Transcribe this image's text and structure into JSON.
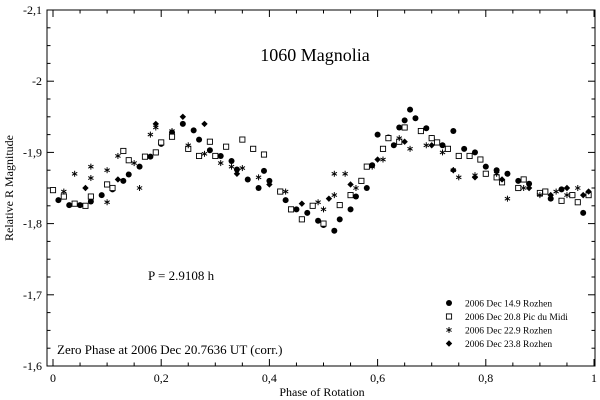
{
  "chart_data": {
    "type": "scatter",
    "title": "1060 Magnolia",
    "xlabel": "Phase of Rotation",
    "ylabel": "Relative R Magnitude",
    "xlim": [
      0,
      1
    ],
    "ylim": [
      -1.6,
      -2.1
    ],
    "x_ticks": [
      0,
      0.2,
      0.4,
      0.6,
      0.8,
      1
    ],
    "x_tick_labels": [
      "0",
      "0,2",
      "0,4",
      "0,6",
      "0,8",
      "1"
    ],
    "y_ticks": [
      -1.6,
      -1.7,
      -1.8,
      -1.9,
      -2.0,
      -2.1
    ],
    "y_tick_labels": [
      "-1,6",
      "-1,7",
      "-1,8",
      "-1,9",
      "-2",
      "-2,1"
    ],
    "annotations": {
      "period": "P = 2.9108 h",
      "zero_phase": "Zero Phase at 2006 Dec 20.7636 UT (corr.)"
    },
    "legend_position": "bottom-right",
    "series": [
      {
        "name": "2006 Dec 14.9 Rozhen",
        "marker": "filled-circle",
        "points": [
          [
            0.01,
            -1.833
          ],
          [
            0.03,
            -1.826
          ],
          [
            0.05,
            -1.826
          ],
          [
            0.07,
            -1.831
          ],
          [
            0.09,
            -1.84
          ],
          [
            0.11,
            -1.848
          ],
          [
            0.13,
            -1.86
          ],
          [
            0.14,
            -1.869
          ],
          [
            0.16,
            -1.88
          ],
          [
            0.18,
            -1.894
          ],
          [
            0.2,
            -1.912
          ],
          [
            0.22,
            -1.928
          ],
          [
            0.24,
            -1.94
          ],
          [
            0.26,
            -1.931
          ],
          [
            0.27,
            -1.918
          ],
          [
            0.29,
            -1.903
          ],
          [
            0.31,
            -1.895
          ],
          [
            0.33,
            -1.888
          ],
          [
            0.34,
            -1.876
          ],
          [
            0.36,
            -1.862
          ],
          [
            0.38,
            -1.85
          ],
          [
            0.39,
            -1.874
          ],
          [
            0.4,
            -1.86
          ],
          [
            0.42,
            -1.845
          ],
          [
            0.43,
            -1.833
          ],
          [
            0.45,
            -1.82
          ],
          [
            0.47,
            -1.815
          ],
          [
            0.49,
            -1.804
          ],
          [
            0.5,
            -1.798
          ],
          [
            0.52,
            -1.79
          ],
          [
            0.53,
            -1.806
          ],
          [
            0.55,
            -1.82
          ],
          [
            0.56,
            -1.838
          ],
          [
            0.58,
            -1.85
          ],
          [
            0.59,
            -1.882
          ],
          [
            0.6,
            -1.925
          ],
          [
            0.62,
            -1.921
          ],
          [
            0.63,
            -1.91
          ],
          [
            0.64,
            -1.935
          ],
          [
            0.65,
            -1.945
          ],
          [
            0.66,
            -1.96
          ],
          [
            0.67,
            -1.948
          ],
          [
            0.69,
            -1.934
          ],
          [
            0.7,
            -1.92
          ],
          [
            0.72,
            -1.91
          ],
          [
            0.74,
            -1.93
          ],
          [
            0.76,
            -1.905
          ],
          [
            0.78,
            -1.9
          ],
          [
            0.8,
            -1.88
          ],
          [
            0.82,
            -1.875
          ],
          [
            0.84,
            -1.87
          ],
          [
            0.86,
            -1.86
          ],
          [
            0.88,
            -1.856
          ],
          [
            0.9,
            -1.842
          ],
          [
            0.92,
            -1.835
          ],
          [
            0.94,
            -1.848
          ],
          [
            0.96,
            -1.84
          ],
          [
            0.98,
            -1.815
          ]
        ]
      },
      {
        "name": "2006 Dec 20.8 Pic du Midi",
        "marker": "open-square",
        "points": [
          [
            0.0,
            -1.847
          ],
          [
            0.02,
            -1.838
          ],
          [
            0.04,
            -1.828
          ],
          [
            0.06,
            -1.825
          ],
          [
            0.07,
            -1.838
          ],
          [
            0.1,
            -1.855
          ],
          [
            0.11,
            -1.85
          ],
          [
            0.13,
            -1.902
          ],
          [
            0.14,
            -1.889
          ],
          [
            0.17,
            -1.894
          ],
          [
            0.19,
            -1.9
          ],
          [
            0.2,
            -1.914
          ],
          [
            0.22,
            -1.922
          ],
          [
            0.25,
            -1.905
          ],
          [
            0.27,
            -1.895
          ],
          [
            0.29,
            -1.915
          ],
          [
            0.3,
            -1.895
          ],
          [
            0.32,
            -1.908
          ],
          [
            0.35,
            -1.918
          ],
          [
            0.37,
            -1.905
          ],
          [
            0.39,
            -1.897
          ],
          [
            0.42,
            -1.845
          ],
          [
            0.44,
            -1.82
          ],
          [
            0.46,
            -1.806
          ],
          [
            0.48,
            -1.825
          ],
          [
            0.5,
            -1.8
          ],
          [
            0.53,
            -1.826
          ],
          [
            0.55,
            -1.84
          ],
          [
            0.57,
            -1.86
          ],
          [
            0.58,
            -1.88
          ],
          [
            0.61,
            -1.905
          ],
          [
            0.62,
            -1.92
          ],
          [
            0.64,
            -1.915
          ],
          [
            0.65,
            -1.935
          ],
          [
            0.68,
            -1.93
          ],
          [
            0.7,
            -1.92
          ],
          [
            0.71,
            -1.914
          ],
          [
            0.73,
            -1.905
          ],
          [
            0.75,
            -1.895
          ],
          [
            0.77,
            -1.895
          ],
          [
            0.79,
            -1.89
          ],
          [
            0.8,
            -1.87
          ],
          [
            0.82,
            -1.865
          ],
          [
            0.83,
            -1.858
          ],
          [
            0.86,
            -1.85
          ],
          [
            0.87,
            -1.862
          ],
          [
            0.9,
            -1.843
          ],
          [
            0.91,
            -1.845
          ],
          [
            0.94,
            -1.832
          ],
          [
            0.96,
            -1.84
          ],
          [
            0.97,
            -1.83
          ],
          [
            0.99,
            -1.84
          ]
        ]
      },
      {
        "name": "2006 Dec 22.9 Rozhen",
        "marker": "asterisk",
        "points": [
          [
            0.02,
            -1.845
          ],
          [
            0.04,
            -1.87
          ],
          [
            0.07,
            -1.864
          ],
          [
            0.07,
            -1.88
          ],
          [
            0.1,
            -1.83
          ],
          [
            0.1,
            -1.875
          ],
          [
            0.12,
            -1.895
          ],
          [
            0.15,
            -1.885
          ],
          [
            0.16,
            -1.85
          ],
          [
            0.18,
            -1.925
          ],
          [
            0.19,
            -1.935
          ],
          [
            0.22,
            -1.93
          ],
          [
            0.25,
            -1.91
          ],
          [
            0.28,
            -1.898
          ],
          [
            0.31,
            -1.885
          ],
          [
            0.33,
            -1.88
          ],
          [
            0.35,
            -1.878
          ],
          [
            0.38,
            -1.865
          ],
          [
            0.43,
            -1.845
          ],
          [
            0.49,
            -1.83
          ],
          [
            0.5,
            -1.82
          ],
          [
            0.52,
            -1.84
          ],
          [
            0.52,
            -1.87
          ],
          [
            0.54,
            -1.87
          ],
          [
            0.56,
            -1.85
          ],
          [
            0.59,
            -1.88
          ],
          [
            0.61,
            -1.89
          ],
          [
            0.64,
            -1.92
          ],
          [
            0.66,
            -1.905
          ],
          [
            0.69,
            -1.91
          ],
          [
            0.72,
            -1.9
          ],
          [
            0.74,
            -1.875
          ],
          [
            0.75,
            -1.865
          ],
          [
            0.78,
            -1.868
          ],
          [
            0.82,
            -1.87
          ],
          [
            0.84,
            -1.835
          ],
          [
            0.87,
            -1.85
          ],
          [
            0.9,
            -1.84
          ],
          [
            0.93,
            -1.845
          ],
          [
            0.95,
            -1.84
          ],
          [
            0.97,
            -1.85
          ]
        ]
      },
      {
        "name": "2006 Dec 23.8 Rozhen",
        "marker": "filled-diamond",
        "points": [
          [
            0.06,
            -1.85
          ],
          [
            0.12,
            -1.862
          ],
          [
            0.19,
            -1.94
          ],
          [
            0.24,
            -1.95
          ],
          [
            0.28,
            -1.94
          ],
          [
            0.34,
            -1.87
          ],
          [
            0.4,
            -1.855
          ],
          [
            0.46,
            -1.828
          ],
          [
            0.51,
            -1.835
          ],
          [
            0.55,
            -1.855
          ],
          [
            0.6,
            -1.89
          ],
          [
            0.65,
            -1.915
          ],
          [
            0.7,
            -1.91
          ],
          [
            0.74,
            -1.875
          ],
          [
            0.78,
            -1.865
          ],
          [
            0.83,
            -1.862
          ],
          [
            0.88,
            -1.85
          ],
          [
            0.92,
            -1.84
          ],
          [
            0.95,
            -1.85
          ],
          [
            0.98,
            -1.84
          ],
          [
            0.99,
            -1.845
          ]
        ]
      }
    ]
  }
}
